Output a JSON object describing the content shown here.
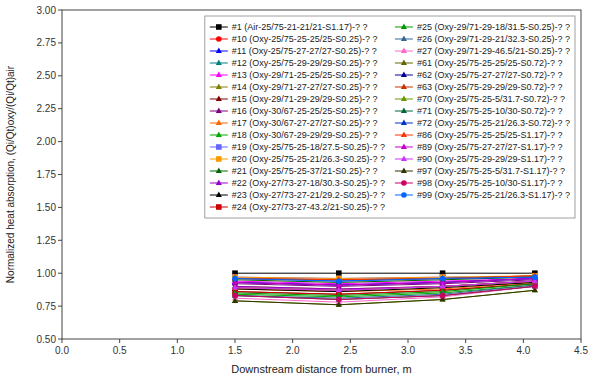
{
  "chart_data": {
    "type": "line",
    "xlabel": "Downstream distance from burner, m",
    "ylabel": "Normalized heat absorption, (Qi/Qt)oxy/(Qi/Qt)air",
    "x": [
      1.5,
      2.4,
      3.3,
      4.1
    ],
    "xlim": [
      0.0,
      4.5
    ],
    "ylim": [
      0.5,
      3.0
    ],
    "xticks": [
      {
        "value": 0.0,
        "label": "0.0"
      },
      0.5,
      {
        "value": 1.0,
        "label": "1.0"
      },
      1.5,
      {
        "value": 2.0,
        "label": "2.0"
      },
      2.5,
      {
        "value": 3.0,
        "label": "3.0"
      },
      3.5,
      {
        "value": 4.0,
        "label": "4.0"
      },
      4.5
    ],
    "yticks": [
      {
        "value": 0.5,
        "label": "0.50"
      },
      0.75,
      {
        "value": 1.0,
        "label": "1.00"
      },
      1.25,
      {
        "value": 1.5,
        "label": "1.50"
      },
      1.75,
      {
        "value": 2.0,
        "label": "2.00"
      },
      2.25,
      {
        "value": 2.5,
        "label": "2.50"
      },
      2.75,
      {
        "value": 3.0,
        "label": "3.00"
      }
    ],
    "grid": false,
    "legend": "upper right",
    "series": [
      {
        "name": "#1 (Air-25/75-21-21/21-S1.17)-? ?",
        "color": "#000000",
        "marker": "square",
        "values": [
          1.0,
          1.0,
          1.0,
          1.0
        ]
      },
      {
        "name": "#10 (Oxy-25/75-25-25/25-S0.25)-? ?",
        "color": "#ff0000",
        "marker": "circle",
        "values": [
          0.96,
          0.95,
          0.96,
          0.98
        ]
      },
      {
        "name": "#11 (Oxy-25/75-27-27/27-S0.25)-? ?",
        "color": "#0000ff",
        "marker": "triangle",
        "values": [
          0.93,
          0.91,
          0.93,
          0.96
        ]
      },
      {
        "name": "#12 (Oxy-25/75-29-29/29-S0.25)-? ?",
        "color": "#008080",
        "marker": "triangle",
        "values": [
          0.89,
          0.87,
          0.9,
          0.94
        ]
      },
      {
        "name": "#13 (Oxy-29/71-25-25/25-S0.25)-? ?",
        "color": "#ff00ff",
        "marker": "triangle",
        "values": [
          0.94,
          0.92,
          0.94,
          0.96
        ]
      },
      {
        "name": "#14 (Oxy-29/71-27-27/27-S0.25)-? ?",
        "color": "#808000",
        "marker": "triangle",
        "values": [
          0.9,
          0.88,
          0.9,
          0.94
        ]
      },
      {
        "name": "#15 (Oxy-29/71-29-29/29-S0.25)-? ?",
        "color": "#800000",
        "marker": "triangle",
        "values": [
          0.86,
          0.84,
          0.87,
          0.92
        ]
      },
      {
        "name": "#16 (Oxy-30/67-25-25/25-S0.25)-? ?",
        "color": "#800080",
        "marker": "triangle",
        "values": [
          0.92,
          0.9,
          0.92,
          0.95
        ]
      },
      {
        "name": "#17 (Oxy-30/67-27-27/27-S0.25)-? ?",
        "color": "#ff6600",
        "marker": "triangle",
        "values": [
          0.88,
          0.86,
          0.88,
          0.93
        ]
      },
      {
        "name": "#18 (Oxy-30/67-29-29/29-S0.25)-? ?",
        "color": "#00aa00",
        "marker": "triangle",
        "values": [
          0.84,
          0.82,
          0.85,
          0.91
        ]
      },
      {
        "name": "#19 (Oxy-25/75-25-18/27.5-S0.25)-? ?",
        "color": "#6666ff",
        "marker": "square",
        "values": [
          0.97,
          0.96,
          0.97,
          0.97
        ]
      },
      {
        "name": "#20 (Oxy-25/75-25-21/26.3-S0.25)-? ?",
        "color": "#ff9900",
        "marker": "square",
        "values": [
          0.97,
          0.96,
          0.97,
          0.98
        ]
      },
      {
        "name": "#21 (Oxy-25/75-25-37/21-S0.25)-? ?",
        "color": "#006600",
        "marker": "triangle",
        "values": [
          0.95,
          0.93,
          0.95,
          0.97
        ]
      },
      {
        "name": "#22 (Oxy-27/73-27-18/30.3-S0.25)-? ?",
        "color": "#9900cc",
        "marker": "triangle",
        "values": [
          0.9,
          0.88,
          0.9,
          0.94
        ]
      },
      {
        "name": "#23 (Oxy-27/73-27-21/29.2-S0.25)-? ?",
        "color": "#000000",
        "marker": "triangle",
        "values": [
          0.88,
          0.86,
          0.89,
          0.93
        ]
      },
      {
        "name": "#24 (Oxy-27/73-27-43.2/21-S0.25)-? ?",
        "color": "#cc0000",
        "marker": "square",
        "values": [
          0.86,
          0.84,
          0.87,
          0.92
        ]
      },
      {
        "name": "#25 (Oxy-29/71-29-18/31.5-S0.25)-? ?",
        "color": "#009900",
        "marker": "triangle",
        "values": [
          0.85,
          0.83,
          0.86,
          0.92
        ]
      },
      {
        "name": "#26 (Oxy-29/71-29-21/32.3-S0.25)-? ?",
        "color": "#336699",
        "marker": "triangle",
        "values": [
          0.83,
          0.81,
          0.84,
          0.91
        ]
      },
      {
        "name": "#27 (Oxy-29/71-29-46.5/21-S0.25)-? ?",
        "color": "#ff66cc",
        "marker": "triangle",
        "values": [
          0.81,
          0.78,
          0.82,
          0.9
        ]
      },
      {
        "name": "#61 (Oxy-25/75-25-25/25-S0.72)-? ?",
        "color": "#666600",
        "marker": "triangle",
        "values": [
          0.96,
          0.95,
          0.96,
          0.98
        ]
      },
      {
        "name": "#62 (Oxy-25/75-27-27/27-S0.72)-? ?",
        "color": "#000099",
        "marker": "triangle",
        "values": [
          0.93,
          0.91,
          0.93,
          0.96
        ]
      },
      {
        "name": "#63 (Oxy-25/75-29-29/29-S0.72)-? ?",
        "color": "#cc3300",
        "marker": "triangle",
        "values": [
          0.89,
          0.87,
          0.9,
          0.94
        ]
      },
      {
        "name": "#70 (Oxy-25/75-25-5/31.7-S0.72)-? ?",
        "color": "#669900",
        "marker": "triangle",
        "values": [
          0.79,
          0.76,
          0.8,
          0.87
        ]
      },
      {
        "name": "#71 (Oxy-25/75-25-10/30-S0.72)-? ?",
        "color": "#006633",
        "marker": "triangle",
        "values": [
          0.83,
          0.8,
          0.83,
          0.9
        ]
      },
      {
        "name": "#72 (Oxy-25/75-25-21/26.3-S0.72)-? ?",
        "color": "#0033cc",
        "marker": "triangle",
        "values": [
          0.96,
          0.94,
          0.96,
          0.97
        ]
      },
      {
        "name": "#86 (Oxy-25/75-25-25/25-S1.17)-? ?",
        "color": "#ff3300",
        "marker": "triangle",
        "values": [
          0.96,
          0.95,
          0.96,
          0.98
        ]
      },
      {
        "name": "#89 (Oxy-25/75-27-27/27-S1.17)-? ?",
        "color": "#cc00cc",
        "marker": "triangle",
        "values": [
          0.93,
          0.91,
          0.93,
          0.96
        ]
      },
      {
        "name": "#90 (Oxy-25/75-29-29/29-S1.17)-? ?",
        "color": "#cc33ff",
        "marker": "triangle",
        "values": [
          0.89,
          0.87,
          0.9,
          0.94
        ]
      },
      {
        "name": "#97 (Oxy-25/75-25-5/31.7-S1.17)-? ?",
        "color": "#333300",
        "marker": "triangle",
        "values": [
          0.79,
          0.76,
          0.8,
          0.87
        ]
      },
      {
        "name": "#98 (Oxy-25/75-25-10/30-S1.17)-? ?",
        "color": "#cc0066",
        "marker": "circle",
        "values": [
          0.83,
          0.8,
          0.83,
          0.9
        ]
      },
      {
        "name": "#99 (Oxy-25/75-25-21/26.3-S1.17)-? ?",
        "color": "#0066ff",
        "marker": "circle",
        "values": [
          0.96,
          0.94,
          0.96,
          0.97
        ]
      }
    ]
  }
}
